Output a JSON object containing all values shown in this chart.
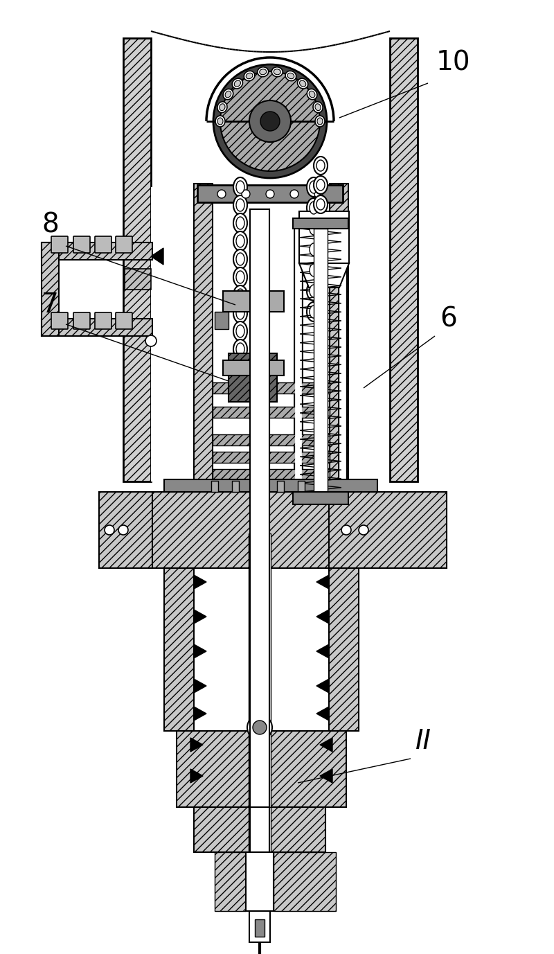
{
  "bg_color": "#ffffff",
  "label_10": "10",
  "label_8": "8",
  "label_7": "7",
  "label_6": "6",
  "label_II": "II",
  "fig_width": 8.0,
  "fig_height": 13.77
}
